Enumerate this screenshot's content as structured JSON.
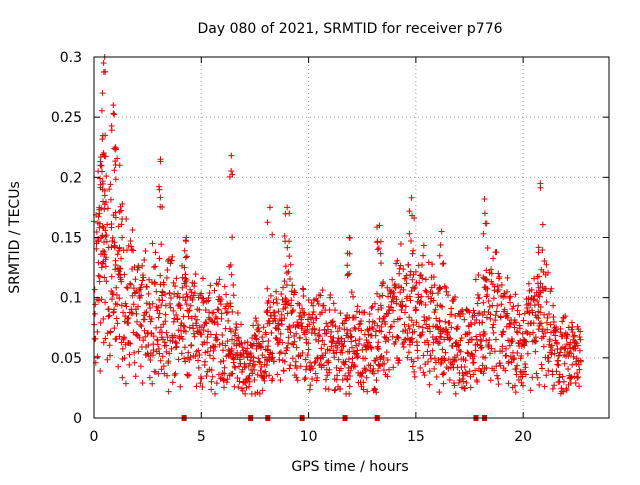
{
  "chart_data": {
    "type": "scatter",
    "title": "Day 080 of 2021, SRMTID for receiver p776",
    "xlabel": "GPS time / hours",
    "ylabel": "SRMTID / TECUs",
    "xlim": [
      0,
      24
    ],
    "ylim": [
      0,
      0.3
    ],
    "xticks": [
      0,
      5,
      10,
      15,
      20
    ],
    "xtick_labels": [
      "0",
      "5",
      "10",
      "15",
      "20"
    ],
    "yticks": [
      0,
      0.05,
      0.1,
      0.15,
      0.2,
      0.25,
      0.3
    ],
    "ytick_labels": [
      "0",
      "0.05",
      "0.1",
      "0.15",
      "0.2",
      "0.25",
      "0.3"
    ],
    "grid": true,
    "marker": "+",
    "color": "#e00000",
    "series": [
      {
        "name": "SRMTID",
        "baseline": [
          [
            0.0,
            0.11
          ],
          [
            0.5,
            0.12
          ],
          [
            1.0,
            0.11
          ],
          [
            1.5,
            0.1
          ],
          [
            2.0,
            0.09
          ],
          [
            2.5,
            0.09
          ],
          [
            3.0,
            0.08
          ],
          [
            3.5,
            0.08
          ],
          [
            4.0,
            0.08
          ],
          [
            4.5,
            0.08
          ],
          [
            5.0,
            0.075
          ],
          [
            5.5,
            0.07
          ],
          [
            6.0,
            0.07
          ],
          [
            6.5,
            0.065
          ],
          [
            7.0,
            0.04
          ],
          [
            7.5,
            0.05
          ],
          [
            8.0,
            0.055
          ],
          [
            8.5,
            0.07
          ],
          [
            9.0,
            0.08
          ],
          [
            9.5,
            0.06
          ],
          [
            10.0,
            0.075
          ],
          [
            10.5,
            0.07
          ],
          [
            11.0,
            0.06
          ],
          [
            11.5,
            0.055
          ],
          [
            12.0,
            0.06
          ],
          [
            12.5,
            0.055
          ],
          [
            13.0,
            0.06
          ],
          [
            13.5,
            0.07
          ],
          [
            14.0,
            0.08
          ],
          [
            14.5,
            0.09
          ],
          [
            15.0,
            0.085
          ],
          [
            15.5,
            0.085
          ],
          [
            16.0,
            0.07
          ],
          [
            16.5,
            0.065
          ],
          [
            17.0,
            0.06
          ],
          [
            17.5,
            0.06
          ],
          [
            18.0,
            0.075
          ],
          [
            18.5,
            0.09
          ],
          [
            19.0,
            0.08
          ],
          [
            19.5,
            0.06
          ],
          [
            20.0,
            0.06
          ],
          [
            20.5,
            0.075
          ],
          [
            21.0,
            0.08
          ],
          [
            21.5,
            0.055
          ],
          [
            22.0,
            0.05
          ],
          [
            22.5,
            0.055
          ],
          [
            22.7,
            0.05
          ]
        ],
        "peaks": [
          [
            0.3,
            0.21
          ],
          [
            0.4,
            0.27
          ],
          [
            0.45,
            0.295
          ],
          [
            0.5,
            0.3
          ],
          [
            0.9,
            0.26
          ],
          [
            1.0,
            0.225
          ],
          [
            1.2,
            0.21
          ],
          [
            3.1,
            0.215
          ],
          [
            6.4,
            0.218
          ],
          [
            8.2,
            0.175
          ],
          [
            9.0,
            0.175
          ],
          [
            13.3,
            0.16
          ],
          [
            14.8,
            0.183
          ],
          [
            18.2,
            0.182
          ],
          [
            20.8,
            0.195
          ],
          [
            16.2,
            0.155
          ],
          [
            11.9,
            0.15
          ],
          [
            4.3,
            0.15
          ]
        ]
      }
    ],
    "gap_markers_x": [
      4.2,
      7.3,
      8.1,
      9.7,
      11.7,
      13.2,
      17.8,
      18.2
    ]
  }
}
